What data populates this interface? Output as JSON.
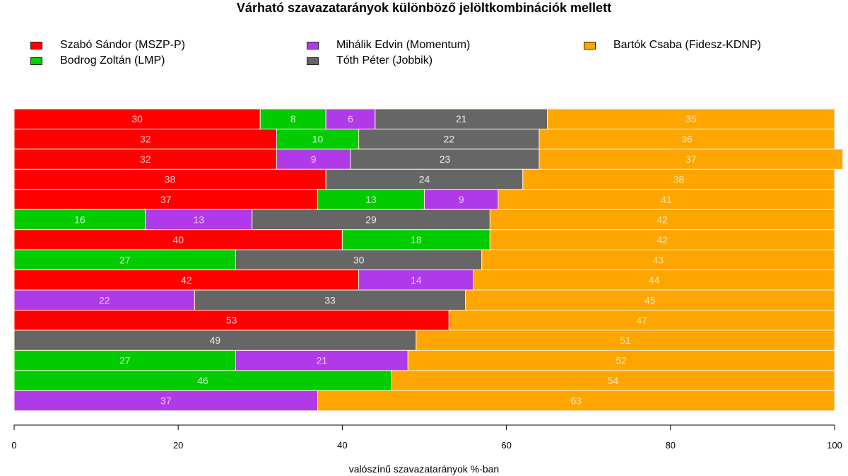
{
  "chart_data": {
    "type": "bar",
    "orientation": "horizontal",
    "stacked": true,
    "title": "Várható szavazatarányok különböző jelöltkombinációk mellett",
    "xlabel": "valószínű szavazatarányok %-ban",
    "ylabel": "",
    "xlim": [
      0,
      100
    ],
    "xticks": [
      0,
      20,
      40,
      60,
      80,
      100
    ],
    "grid": false,
    "legend_position": "top",
    "series_meta": [
      {
        "key": "szabo",
        "name": "Szabó Sándor (MSZP-P)",
        "color": "#ff0000",
        "label_color": "#ffc8c8"
      },
      {
        "key": "bodrog",
        "name": "Bodrog Zoltán (LMP)",
        "color": "#00cc00",
        "label_color": "#c8f5c8"
      },
      {
        "key": "mihalik",
        "name": "Mihálik Edvin (Momentum)",
        "color": "#b03ae8",
        "label_color": "#ecc8ff"
      },
      {
        "key": "toth",
        "name": "Tóth Péter (Jobbik)",
        "color": "#666666",
        "label_color": "#ececec"
      },
      {
        "key": "bartok",
        "name": "Bartók Csaba (Fidesz-KDNP)",
        "color": "#ffa500",
        "label_color": "#ffe6b0"
      }
    ],
    "rows": [
      {
        "szabo": 30,
        "bodrog": 8,
        "mihalik": 6,
        "toth": 21,
        "bartok": 35
      },
      {
        "szabo": 32,
        "bodrog": 10,
        "mihalik": null,
        "toth": 22,
        "bartok": 36
      },
      {
        "szabo": 32,
        "bodrog": null,
        "mihalik": 9,
        "toth": 23,
        "bartok": 37
      },
      {
        "szabo": 38,
        "bodrog": null,
        "mihalik": null,
        "toth": 24,
        "bartok": 38
      },
      {
        "szabo": 37,
        "bodrog": 13,
        "mihalik": 9,
        "toth": null,
        "bartok": 41
      },
      {
        "szabo": null,
        "bodrog": 16,
        "mihalik": 13,
        "toth": 29,
        "bartok": 42
      },
      {
        "szabo": 40,
        "bodrog": 18,
        "mihalik": null,
        "toth": null,
        "bartok": 42
      },
      {
        "szabo": null,
        "bodrog": 27,
        "mihalik": null,
        "toth": 30,
        "bartok": 43
      },
      {
        "szabo": 42,
        "bodrog": null,
        "mihalik": 14,
        "toth": null,
        "bartok": 44
      },
      {
        "szabo": null,
        "bodrog": null,
        "mihalik": 22,
        "toth": 33,
        "bartok": 45
      },
      {
        "szabo": 53,
        "bodrog": null,
        "mihalik": null,
        "toth": null,
        "bartok": 47
      },
      {
        "szabo": null,
        "bodrog": null,
        "mihalik": null,
        "toth": 49,
        "bartok": 51
      },
      {
        "szabo": null,
        "bodrog": 27,
        "mihalik": 21,
        "toth": null,
        "bartok": 52
      },
      {
        "szabo": null,
        "bodrog": 46,
        "mihalik": null,
        "toth": null,
        "bartok": 54
      },
      {
        "szabo": null,
        "bodrog": null,
        "mihalik": 37,
        "toth": null,
        "bartok": 63
      }
    ]
  }
}
